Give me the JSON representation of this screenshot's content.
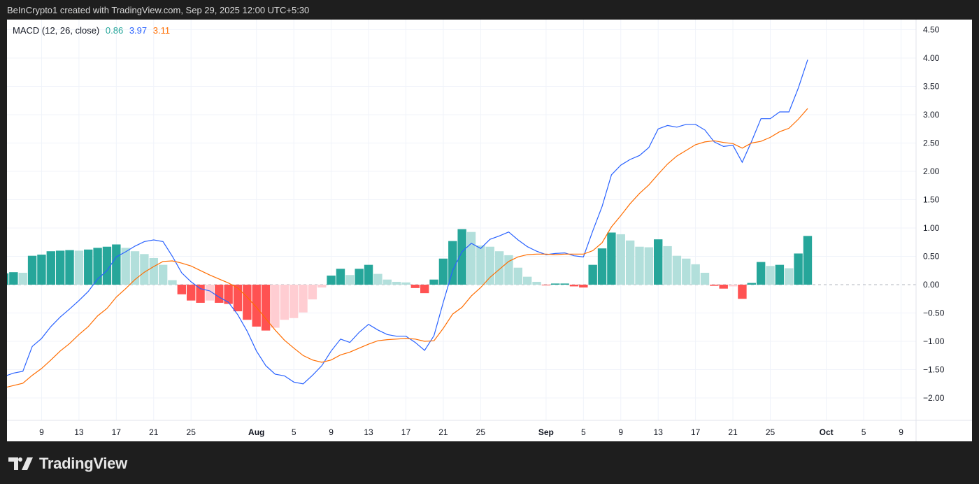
{
  "header": {
    "attribution": "BeInCrypto1 created with TradingView.com, Sep 29, 2025 12:00 UTC+5:30"
  },
  "legend": {
    "name": "MACD (12, 26, close)",
    "histogram_value": "0.86",
    "macd_value": "3.97",
    "signal_value": "3.11"
  },
  "brand": {
    "name": "TradingView"
  },
  "colors": {
    "macd": "#2962ff",
    "signal": "#ff6d00",
    "hist_up_strong": "#26a69a",
    "hist_up_weak": "#b2dfdb",
    "hist_down_strong": "#ff5252",
    "hist_down_weak": "#ffcdd2",
    "legend_hist": "#26a69a"
  },
  "chart_data": {
    "type": "bar+line",
    "title": "MACD (12, 26, close)",
    "start_date": "2025-07-05",
    "ylim": [
      -2.5,
      4.75
    ],
    "y_ticks": [
      "4.50",
      "4.00",
      "3.50",
      "3.00",
      "2.50",
      "2.00",
      "1.50",
      "1.00",
      "0.50",
      "0.00",
      "−0.50",
      "−1.00",
      "−1.50",
      "−2.00"
    ],
    "y_tick_values": [
      4.5,
      4,
      3.5,
      3,
      2.5,
      2,
      1.5,
      1,
      0.5,
      0,
      -0.5,
      -1,
      -1.5,
      -2
    ],
    "x_ticks": [
      {
        "label": "9",
        "day": 4
      },
      {
        "label": "13",
        "day": 8
      },
      {
        "label": "17",
        "day": 12
      },
      {
        "label": "21",
        "day": 16
      },
      {
        "label": "25",
        "day": 20
      },
      {
        "label": "Aug",
        "day": 27,
        "bold": true
      },
      {
        "label": "5",
        "day": 31
      },
      {
        "label": "9",
        "day": 35
      },
      {
        "label": "13",
        "day": 39
      },
      {
        "label": "17",
        "day": 43
      },
      {
        "label": "21",
        "day": 47
      },
      {
        "label": "25",
        "day": 51
      },
      {
        "label": "Sep",
        "day": 58,
        "bold": true
      },
      {
        "label": "5",
        "day": 62
      },
      {
        "label": "9",
        "day": 66
      },
      {
        "label": "13",
        "day": 70
      },
      {
        "label": "17",
        "day": 74
      },
      {
        "label": "21",
        "day": 78
      },
      {
        "label": "25",
        "day": 82
      },
      {
        "label": "Oct",
        "day": 88,
        "bold": true
      },
      {
        "label": "5",
        "day": 92
      },
      {
        "label": "9",
        "day": 96
      }
    ],
    "series": [
      {
        "name": "Histogram",
        "values": [
          0.2,
          0.22,
          0.21,
          0.51,
          0.53,
          0.59,
          0.6,
          0.61,
          0.6,
          0.62,
          0.65,
          0.67,
          0.71,
          0.65,
          0.59,
          0.54,
          0.47,
          0.35,
          0.08,
          -0.17,
          -0.28,
          -0.32,
          -0.28,
          -0.32,
          -0.34,
          -0.47,
          -0.62,
          -0.74,
          -0.81,
          -0.76,
          -0.62,
          -0.59,
          -0.49,
          -0.26,
          -0.05,
          0.16,
          0.28,
          0.17,
          0.28,
          0.35,
          0.19,
          0.09,
          0.05,
          0.04,
          -0.06,
          -0.15,
          0.09,
          0.46,
          0.77,
          0.98,
          0.93,
          0.69,
          0.67,
          0.59,
          0.52,
          0.3,
          0.14,
          0.05,
          -0.01,
          0.02,
          0.02,
          -0.03,
          -0.05,
          0.35,
          0.64,
          0.92,
          0.89,
          0.78,
          0.67,
          0.66,
          0.8,
          0.68,
          0.51,
          0.46,
          0.36,
          0.21,
          -0.02,
          -0.07,
          -0.03,
          -0.25,
          0.03,
          0.4,
          0.33,
          0.35,
          0.29,
          0.55,
          0.86
        ]
      },
      {
        "name": "MACD",
        "values": [
          -1.62,
          -1.56,
          -1.53,
          -1.09,
          -0.95,
          -0.74,
          -0.57,
          -0.43,
          -0.28,
          -0.12,
          0.1,
          0.25,
          0.49,
          0.58,
          0.68,
          0.76,
          0.79,
          0.76,
          0.5,
          0.21,
          0.05,
          -0.07,
          -0.11,
          -0.22,
          -0.31,
          -0.53,
          -0.82,
          -1.17,
          -1.43,
          -1.58,
          -1.61,
          -1.72,
          -1.75,
          -1.6,
          -1.43,
          -1.17,
          -0.96,
          -1.02,
          -0.84,
          -0.7,
          -0.8,
          -0.88,
          -0.91,
          -0.91,
          -1.02,
          -1.16,
          -0.9,
          -0.31,
          0.25,
          0.58,
          0.73,
          0.64,
          0.8,
          0.86,
          0.93,
          0.79,
          0.67,
          0.59,
          0.53,
          0.55,
          0.56,
          0.51,
          0.49,
          0.95,
          1.38,
          1.94,
          2.11,
          2.21,
          2.28,
          2.42,
          2.75,
          2.81,
          2.78,
          2.83,
          2.83,
          2.73,
          2.52,
          2.44,
          2.46,
          2.16,
          2.53,
          2.93,
          2.93,
          3.05,
          3.05,
          3.47,
          3.97
        ]
      },
      {
        "name": "Signal",
        "values": [
          -1.82,
          -1.78,
          -1.74,
          -1.6,
          -1.48,
          -1.33,
          -1.17,
          -1.04,
          -0.88,
          -0.74,
          -0.55,
          -0.42,
          -0.22,
          -0.07,
          0.09,
          0.22,
          0.32,
          0.41,
          0.42,
          0.38,
          0.33,
          0.25,
          0.17,
          0.1,
          0.03,
          -0.06,
          -0.22,
          -0.4,
          -0.6,
          -0.8,
          -0.98,
          -1.12,
          -1.25,
          -1.33,
          -1.37,
          -1.33,
          -1.24,
          -1.19,
          -1.12,
          -1.05,
          -0.99,
          -0.97,
          -0.96,
          -0.95,
          -0.96,
          -1.0,
          -0.99,
          -0.77,
          -0.52,
          -0.4,
          -0.2,
          -0.05,
          0.13,
          0.27,
          0.41,
          0.49,
          0.53,
          0.54,
          0.54,
          0.53,
          0.54,
          0.54,
          0.54,
          0.6,
          0.74,
          1.02,
          1.22,
          1.43,
          1.61,
          1.76,
          1.95,
          2.13,
          2.27,
          2.37,
          2.47,
          2.52,
          2.54,
          2.51,
          2.49,
          2.41,
          2.5,
          2.53,
          2.6,
          2.7,
          2.76,
          2.92,
          3.11
        ]
      }
    ],
    "grid": true,
    "legend": "top-left"
  }
}
